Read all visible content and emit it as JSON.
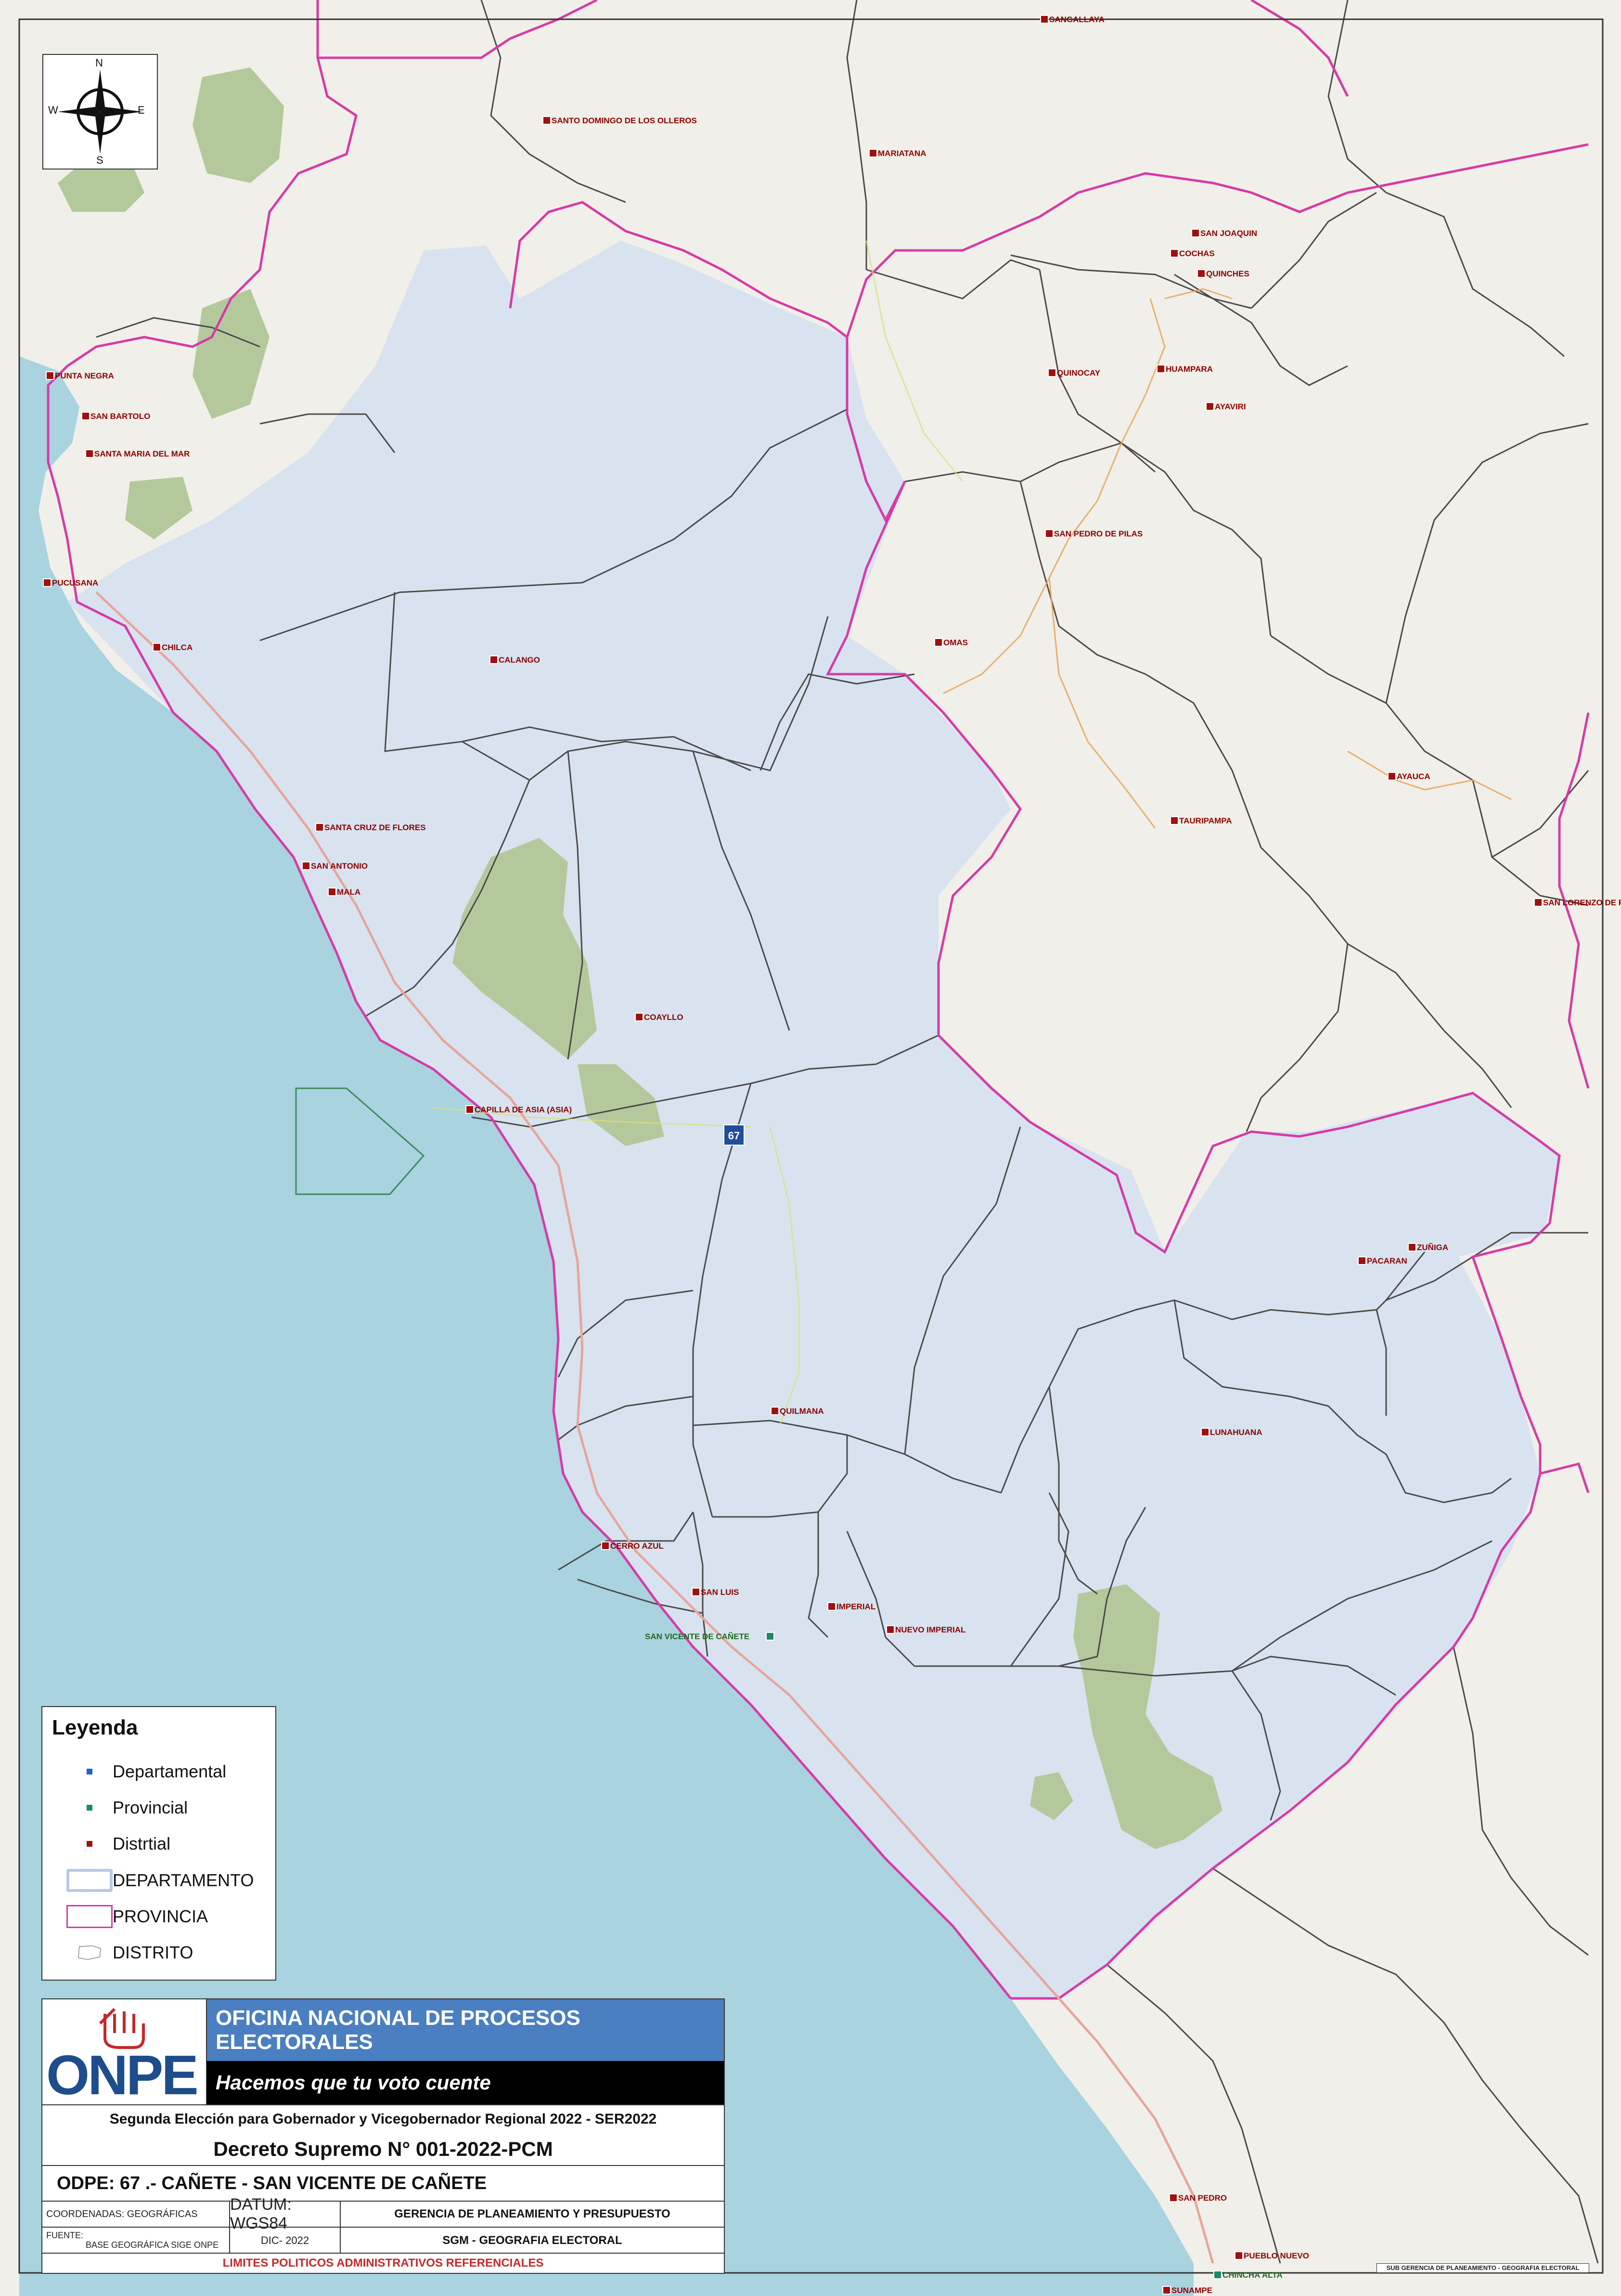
{
  "compass": {
    "n": "N",
    "s": "S",
    "e": "E",
    "w": "W"
  },
  "legend": {
    "title": "Leyenda",
    "items": [
      {
        "label": "Departamental",
        "color": "#1f5fd6"
      },
      {
        "label": "Provincial",
        "color": "#1a8a6a"
      },
      {
        "label": "Distrtial",
        "color": "#a01010"
      },
      {
        "label": "DEPARTAMENTO",
        "color": "#b9c8e6"
      },
      {
        "label": "PROVINCIA",
        "color": "#d63ba7"
      },
      {
        "label": "DISTRITO",
        "color": "#9a9a9a"
      }
    ]
  },
  "places": [
    {
      "name": "SANGALLAYA",
      "type": "district"
    },
    {
      "name": "SANTO DOMINGO DE LOS OLLEROS",
      "type": "district"
    },
    {
      "name": "MARIATANA",
      "type": "district"
    },
    {
      "name": "SAN JOAQUIN",
      "type": "district"
    },
    {
      "name": "COCHAS",
      "type": "district"
    },
    {
      "name": "QUINCHES",
      "type": "district"
    },
    {
      "name": "PUNTA NEGRA",
      "type": "district"
    },
    {
      "name": "SAN BARTOLO",
      "type": "district"
    },
    {
      "name": "SANTA MARIA DEL MAR",
      "type": "district"
    },
    {
      "name": "QUINOCAY",
      "type": "district"
    },
    {
      "name": "HUAMPARA",
      "type": "district"
    },
    {
      "name": "AYAVIRI",
      "type": "district"
    },
    {
      "name": "SAN PEDRO DE PILAS",
      "type": "district"
    },
    {
      "name": "PUCUSANA",
      "type": "district"
    },
    {
      "name": "CHILCA",
      "type": "district"
    },
    {
      "name": "OMAS",
      "type": "district"
    },
    {
      "name": "CALANGO",
      "type": "district"
    },
    {
      "name": "AYAUCA",
      "type": "district"
    },
    {
      "name": "SANTA CRUZ DE FLORES",
      "type": "district"
    },
    {
      "name": "TAURIPAMPA",
      "type": "district"
    },
    {
      "name": "SAN ANTONIO",
      "type": "district"
    },
    {
      "name": "MALA",
      "type": "district"
    },
    {
      "name": "SAN LORENZO DE PUTINZA",
      "type": "district"
    },
    {
      "name": "COAYLLO",
      "type": "district"
    },
    {
      "name": "CAPILLA DE ASIA (ASIA)",
      "type": "district"
    },
    {
      "name": "ZUÑIGA",
      "type": "district"
    },
    {
      "name": "PACARAN",
      "type": "district"
    },
    {
      "name": "QUILMANA",
      "type": "district"
    },
    {
      "name": "LUNAHUANA",
      "type": "district"
    },
    {
      "name": "CERRO AZUL",
      "type": "district"
    },
    {
      "name": "SAN LUIS",
      "type": "district"
    },
    {
      "name": "IMPERIAL",
      "type": "district"
    },
    {
      "name": "SAN VICENTE DE CAÑETE",
      "type": "provincial"
    },
    {
      "name": "NUEVO IMPERIAL",
      "type": "district"
    },
    {
      "name": "SAN PEDRO",
      "type": "district"
    },
    {
      "name": "PUEBLO NUEVO",
      "type": "district"
    },
    {
      "name": "CHINCHA ALTA",
      "type": "provincial"
    },
    {
      "name": "SUNAMPE",
      "type": "district"
    }
  ],
  "road_shield": "67",
  "colors": {
    "sea": "#a9d3df",
    "land": "#f1efe9",
    "district_fill": "#d6e1ef",
    "park": "#b3c99c",
    "province": "#d63ba7",
    "district_line": "#4a4a4a"
  },
  "title_block": {
    "org": "OFICINA NACIONAL DE PROCESOS ELECTORALES",
    "logo": "ONPE",
    "slogan": "Hacemos que tu voto cuente",
    "election": "Segunda Elección para Gobernador y Vicegobernador Regional 2022 - SER2022",
    "decree": "Decreto Supremo N° 001-2022-PCM",
    "odpe": "ODPE:  67 .- CAÑETE - SAN VICENTE DE CAÑETE",
    "coords_label": "COORDENADAS: GEOGRÁFICAS",
    "datum": "DATUM: WGS84",
    "dept1": "GERENCIA DE PLANEAMIENTO Y PRESUPUESTO",
    "source_label": "FUENTE:",
    "source": "BASE GEOGRÁFICA SIGE ONPE",
    "date": "DIC- 2022",
    "dept2": "SGM - GEOGRAFIA ELECTORAL",
    "note": "LIMITES POLITICOS ADMINISTRATIVOS REFERENCIALES"
  },
  "footer_credit": "SUB GERENCIA DE PLANEAMIENTO - GEOGRAFIA ELECTORAL"
}
